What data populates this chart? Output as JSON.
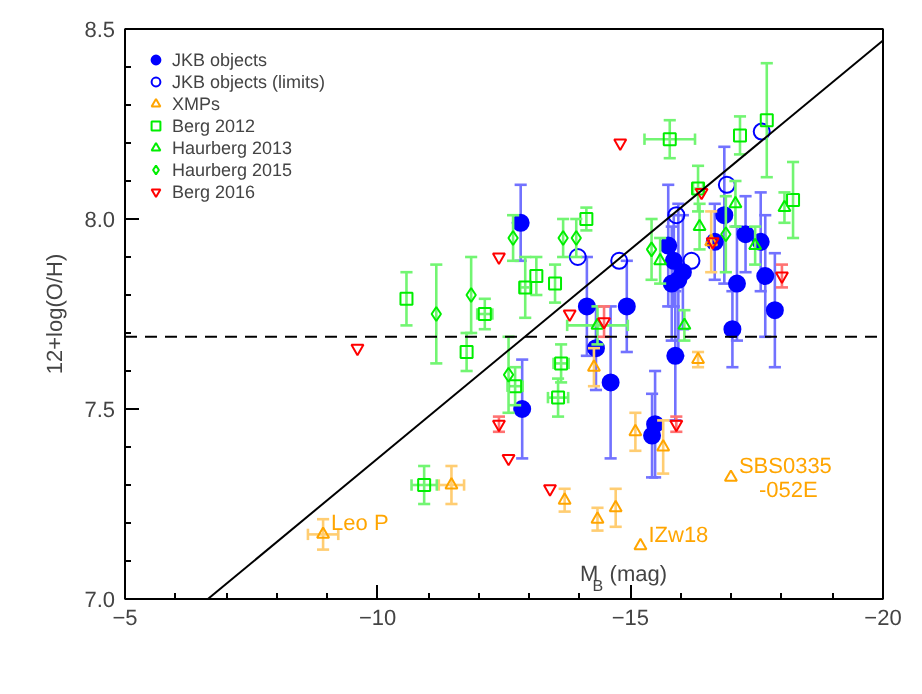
{
  "chart_data": {
    "type": "scatter",
    "xlabel": "M$_{B}$ (mag)",
    "ylabel": "12+log(O/H)",
    "xlim": [
      -5,
      -20
    ],
    "ylim": [
      7.0,
      8.5
    ],
    "xticks": [
      -5,
      -10,
      -15,
      -20
    ],
    "yticks": [
      {
        "value": 7.0,
        "label": "7.0"
      },
      7.5,
      {
        "value": 8.0,
        "label": "8.0"
      },
      8.5
    ],
    "legend": "top left",
    "grid": false,
    "ref_lines": [
      {
        "axis": "y",
        "value": 7.69,
        "line_style": "dashed",
        "color": "#000000"
      }
    ],
    "annotations": [
      {
        "text": "Leo P",
        "x": -8.92,
        "y": 7.17
      },
      {
        "text": "IZw18",
        "x": -15.2,
        "y": 7.14
      },
      {
        "text": "SBS0335\n-052E",
        "x": -16.99,
        "y": 7.32
      }
    ],
    "series": [
      {
        "name": "JKB objects",
        "marker": "circle",
        "color": "#0000ff",
        "x": [
          -12.83,
          -12.86,
          -14.14,
          -14.32,
          -14.61,
          -14.93,
          -15.43,
          -15.49,
          -15.75,
          -15.82,
          -15.86,
          -15.89,
          -15.95,
          -16.04,
          -16.67,
          -16.86,
          -17.02,
          -17.11,
          -17.28,
          -17.58,
          -17.67,
          -17.86
        ],
        "values": [
          7.99,
          7.5,
          7.77,
          7.66,
          7.57,
          7.77,
          7.43,
          7.46,
          7.93,
          7.83,
          7.89,
          7.64,
          7.84,
          7.86,
          7.94,
          8.01,
          7.71,
          7.83,
          7.96,
          7.94,
          7.85,
          7.76
        ],
        "errors": [
          0.1,
          0.13,
          0.13,
          0.11,
          0.2,
          0.12,
          0.11,
          0.14,
          0.16,
          0.15,
          0.12,
          0.17,
          0.2,
          0.15,
          0.1,
          0.18,
          0.1,
          0.15,
          0.1,
          0.13,
          0.16,
          0.15
        ]
      },
      {
        "name": "JKB objects (limits)",
        "marker": "circle",
        "color": "#0000ff",
        "x": [
          -13.96,
          -14.78,
          -15.91,
          -16.21,
          -16.91,
          -17.6
        ],
        "values": [
          7.9,
          7.89,
          8.01,
          7.89,
          8.09,
          8.23
        ]
      },
      {
        "name": "XMPs",
        "marker": "triangle",
        "color": "#ffa500",
        "x": [
          -8.92,
          -11.46,
          -14.28,
          -14.35,
          -13.7,
          -14.71,
          -15.1,
          -15.65,
          -16.34,
          -16.6,
          -15.2,
          -16.99
        ],
        "values": [
          7.17,
          7.3,
          7.61,
          7.21,
          7.26,
          7.24,
          7.44,
          7.4,
          7.63,
          7.94,
          7.14,
          7.32
        ],
        "errors": [
          0.04,
          0.05,
          0.05,
          0.03,
          0.03,
          0.05,
          0.05,
          0.07,
          0.02,
          0.08,
          null,
          null
        ],
        "xerrors": [
          0.3,
          0.25,
          null,
          null,
          null,
          null,
          null,
          null,
          null,
          null,
          null,
          null
        ]
      },
      {
        "name": "Berg 2012",
        "marker": "square",
        "color": "#00ee00",
        "x": [
          -10.57,
          -11.76,
          -12.12,
          -10.92,
          -12.92,
          -13.14,
          -13.51,
          -14.13,
          -13.63,
          -13.57,
          -12.72,
          -15.78,
          -17.17,
          -17.7,
          -18.22,
          -16.34
        ],
        "values": [
          7.79,
          7.65,
          7.75,
          7.3,
          7.82,
          7.85,
          7.83,
          8.0,
          7.62,
          7.53,
          7.56,
          8.21,
          8.22,
          8.26,
          8.05,
          8.08
        ],
        "errors": [
          0.07,
          0.05,
          0.04,
          0.05,
          0.08,
          0.05,
          0.05,
          0.03,
          0.05,
          0.05,
          0.05,
          0.05,
          0.05,
          0.15,
          0.1,
          0.06
        ],
        "xerrors": [
          null,
          null,
          0.15,
          0.25,
          0.1,
          null,
          null,
          null,
          0.15,
          0.2,
          0.15,
          0.5,
          null,
          null,
          null,
          0.1
        ]
      },
      {
        "name": "Haurberg 2013",
        "marker": "triangle",
        "color": "#00ee00",
        "x": [
          -16.37,
          -16.07,
          -17.47,
          -18.05,
          -17.08,
          -14.35,
          -15.59
        ],
        "values": [
          7.98,
          7.72,
          7.93,
          8.03,
          8.04,
          7.72,
          7.89
        ],
        "errors": [
          0.06,
          0.04,
          0.05,
          0.04,
          0.06,
          0.05,
          0.06
        ],
        "xerrors": [
          null,
          null,
          null,
          null,
          null,
          0.6,
          null
        ]
      },
      {
        "name": "Haurberg 2015",
        "marker": "diamond",
        "color": "#00ee00",
        "x": [
          -11.16,
          -11.85,
          -12.68,
          -12.59,
          -13.67,
          -13.93,
          -15.42,
          -16.89
        ],
        "values": [
          7.75,
          7.8,
          7.95,
          7.59,
          7.95,
          7.95,
          7.92,
          7.96
        ],
        "errors": [
          0.13,
          0.1,
          0.06,
          0.1,
          0.05,
          0.05,
          0.08,
          0.1
        ]
      },
      {
        "name": "Berg 2016",
        "marker": "triangle",
        "color": "#ff0000",
        "x": [
          -9.6,
          -12.4,
          -12.4,
          -12.59,
          -13.41,
          -13.8,
          -14.48,
          -14.8,
          -15.91,
          -16.41,
          -18.0,
          -16.63
        ],
        "values": [
          7.66,
          7.9,
          7.46,
          7.37,
          7.29,
          7.75,
          7.73,
          8.2,
          7.46,
          8.07,
          7.85,
          7.94
        ],
        "errors": [
          null,
          null,
          0.02,
          null,
          null,
          null,
          0.04,
          null,
          0.02,
          null,
          0.03,
          null
        ]
      },
      {
        "type": "line",
        "color": "#000000",
        "x": [
          -6.64,
          -20
        ],
        "values": [
          7.0,
          8.47
        ]
      }
    ]
  }
}
